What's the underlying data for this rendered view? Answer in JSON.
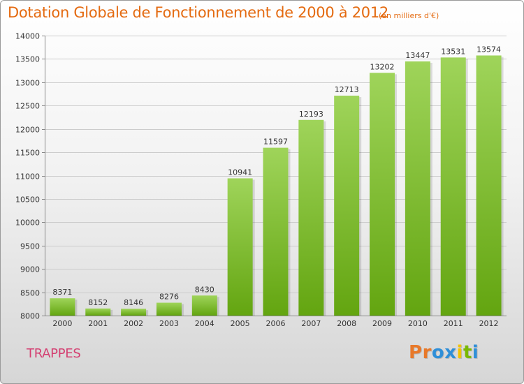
{
  "header": {
    "title": "Dotation Globale de Fonctionnement de 2000 à 2012",
    "subtitle": "(en milliers d'€)"
  },
  "footer": {
    "commune": "TRAPPES",
    "logo_text": "Proxiti",
    "logo_colors": [
      "#e8792a",
      "#e8792a",
      "#2f8fd8",
      "#2f8fd8",
      "#f2c300",
      "#7ab800",
      "#2f8fd8"
    ]
  },
  "colors": {
    "title": "#e46a10",
    "commune": "#d43f71",
    "bar_light": "#9fd45a",
    "bar_dark": "#63a510",
    "grid": "#cccccc"
  },
  "chart_data": {
    "type": "bar",
    "title": "Dotation Globale de Fonctionnement de 2000 à 2012",
    "subtitle": "(en milliers d'€)",
    "xlabel": "",
    "ylabel": "",
    "categories": [
      "2000",
      "2001",
      "2002",
      "2003",
      "2004",
      "2005",
      "2006",
      "2007",
      "2008",
      "2009",
      "2010",
      "2011",
      "2012"
    ],
    "values": [
      8371,
      8152,
      8146,
      8276,
      8430,
      10941,
      11597,
      12193,
      12713,
      13202,
      13447,
      13531,
      13574
    ],
    "ylim": [
      8000,
      14000
    ],
    "yticks": [
      8000,
      8500,
      9000,
      9500,
      10000,
      10500,
      11000,
      11500,
      12000,
      12500,
      13000,
      13500,
      14000
    ],
    "grid": true,
    "data_labels": true
  }
}
